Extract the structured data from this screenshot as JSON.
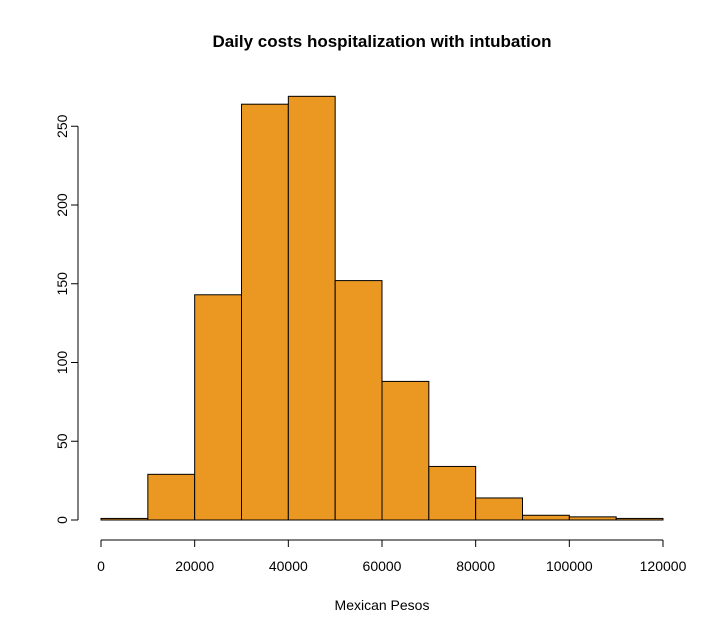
{
  "chart_data": {
    "type": "bar",
    "title": "Daily costs hospitalization with intubation",
    "xlabel": "Mexican Pesos",
    "ylabel": "",
    "bins": [
      {
        "start": 0,
        "end": 10000,
        "count": 1
      },
      {
        "start": 10000,
        "end": 20000,
        "count": 29
      },
      {
        "start": 20000,
        "end": 30000,
        "count": 143
      },
      {
        "start": 30000,
        "end": 40000,
        "count": 264
      },
      {
        "start": 40000,
        "end": 50000,
        "count": 269
      },
      {
        "start": 50000,
        "end": 60000,
        "count": 152
      },
      {
        "start": 60000,
        "end": 70000,
        "count": 88
      },
      {
        "start": 70000,
        "end": 80000,
        "count": 34
      },
      {
        "start": 80000,
        "end": 90000,
        "count": 14
      },
      {
        "start": 90000,
        "end": 100000,
        "count": 3
      },
      {
        "start": 100000,
        "end": 110000,
        "count": 2
      },
      {
        "start": 110000,
        "end": 120000,
        "count": 1
      }
    ],
    "xlim": [
      0,
      120000
    ],
    "ylim": [
      0,
      269
    ],
    "x_ticks": [
      0,
      20000,
      40000,
      60000,
      80000,
      100000,
      120000
    ],
    "x_tick_labels": [
      "0",
      "20000",
      "40000",
      "60000",
      "80000",
      "100000",
      "120000"
    ],
    "y_ticks": [
      0,
      50,
      100,
      150,
      200,
      250
    ],
    "y_tick_labels": [
      "0",
      "50",
      "100",
      "150",
      "200",
      "250"
    ],
    "bar_color": "#EB9823",
    "edge_color": "#000000",
    "grid": false,
    "legend": "none"
  }
}
